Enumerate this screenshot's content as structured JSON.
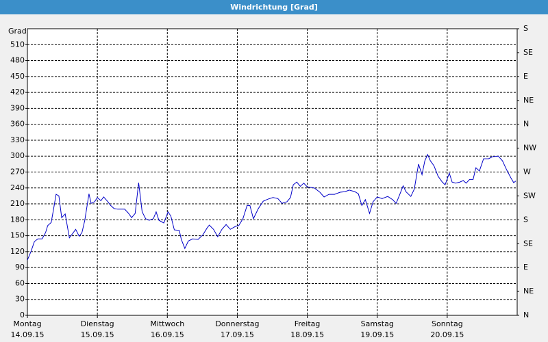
{
  "chart_data": {
    "type": "line",
    "title": "Windrichtung [Grad]",
    "ylabel": "Grad",
    "xlim": [
      0,
      7
    ],
    "xticks": [
      {
        "value": 0,
        "label": "Montag"
      },
      {
        "value": 1,
        "label": "Dienstag"
      },
      {
        "value": 2,
        "label": "Mittwoch"
      },
      {
        "value": 3,
        "label": "Donnerstag"
      },
      {
        "value": 4,
        "label": "Freitag"
      },
      {
        "value": 5,
        "label": "Samstag"
      },
      {
        "value": 6,
        "label": "Sonntag"
      }
    ],
    "xtick_dates": [
      "14.09.15",
      "15.09.15",
      "16.09.15",
      "17.09.15",
      "18.09.15",
      "19.09.15",
      "20.09.15"
    ],
    "ylim": [
      0,
      540
    ],
    "yticks": [
      0,
      30,
      60,
      90,
      120,
      150,
      180,
      210,
      240,
      270,
      300,
      330,
      360,
      390,
      420,
      450,
      480,
      510
    ],
    "y2lim": [
      0,
      540
    ],
    "y2ticks": [
      {
        "value": 0,
        "label": "N"
      },
      {
        "value": 45,
        "label": "NE"
      },
      {
        "value": 90,
        "label": "E"
      },
      {
        "value": 135,
        "label": "SE"
      },
      {
        "value": 180,
        "label": "S"
      },
      {
        "value": 225,
        "label": "SW"
      },
      {
        "value": 270,
        "label": "W"
      },
      {
        "value": 315,
        "label": "NW"
      },
      {
        "value": 360,
        "label": "N"
      },
      {
        "value": 405,
        "label": "NE"
      },
      {
        "value": 450,
        "label": "E"
      },
      {
        "value": 495,
        "label": "SE"
      },
      {
        "value": 540,
        "label": "S"
      }
    ],
    "grid": true,
    "color": "#0000c8",
    "x": [
      0,
      0.05,
      0.1,
      0.15,
      0.21,
      0.26,
      0.29,
      0.34,
      0.37,
      0.41,
      0.45,
      0.49,
      0.54,
      0.6,
      0.64,
      0.69,
      0.74,
      0.78,
      0.82,
      0.88,
      0.91,
      0.96,
      1.0,
      1.05,
      1.09,
      1.15,
      1.19,
      1.24,
      1.29,
      1.39,
      1.44,
      1.49,
      1.54,
      1.59,
      1.64,
      1.69,
      1.74,
      1.8,
      1.84,
      1.88,
      1.95,
      2.01,
      2.05,
      2.1,
      2.17,
      2.2,
      2.25,
      2.3,
      2.36,
      2.44,
      2.51,
      2.57,
      2.6,
      2.66,
      2.72,
      2.78,
      2.84,
      2.9,
      2.98,
      3.02,
      3.08,
      3.14,
      3.18,
      3.23,
      3.3,
      3.37,
      3.44,
      3.51,
      3.58,
      3.64,
      3.71,
      3.76,
      3.8,
      3.85,
      3.9,
      3.95,
      4.0,
      4.1,
      4.18,
      4.24,
      4.31,
      4.39,
      4.47,
      4.54,
      4.6,
      4.68,
      4.73,
      4.78,
      4.83,
      4.89,
      4.94,
      5.0,
      5.07,
      5.15,
      5.22,
      5.27,
      5.32,
      5.37,
      5.41,
      5.48,
      5.53,
      5.59,
      5.64,
      5.68,
      5.72,
      5.76,
      5.81,
      5.87,
      5.93,
      5.97,
      6.03,
      6.07,
      6.12,
      6.18,
      6.23,
      6.27,
      6.32,
      6.37,
      6.41,
      6.46,
      6.52,
      6.59,
      6.65,
      6.73,
      6.79,
      6.85,
      6.91,
      6.95,
      6.98
    ],
    "values": [
      104,
      120,
      139,
      144,
      144,
      156,
      169,
      175,
      197,
      228,
      225,
      184,
      191,
      146,
      153,
      162,
      149,
      156,
      179,
      229,
      211,
      214,
      222,
      216,
      223,
      214,
      207,
      201,
      200,
      200,
      193,
      184,
      192,
      250,
      195,
      182,
      179,
      182,
      195,
      179,
      174,
      195,
      187,
      161,
      160,
      143,
      126,
      140,
      144,
      143,
      152,
      165,
      170,
      162,
      148,
      162,
      171,
      162,
      168,
      169,
      182,
      207,
      207,
      182,
      201,
      215,
      219,
      222,
      220,
      211,
      214,
      222,
      246,
      251,
      243,
      249,
      242,
      240,
      232,
      223,
      228,
      228,
      232,
      233,
      236,
      233,
      229,
      207,
      218,
      192,
      214,
      223,
      220,
      224,
      218,
      211,
      227,
      244,
      233,
      224,
      238,
      285,
      265,
      291,
      303,
      291,
      282,
      262,
      251,
      246,
      268,
      251,
      249,
      251,
      254,
      249,
      256,
      256,
      278,
      272,
      295,
      295,
      299,
      300,
      291,
      274,
      259,
      250,
      253
    ]
  }
}
